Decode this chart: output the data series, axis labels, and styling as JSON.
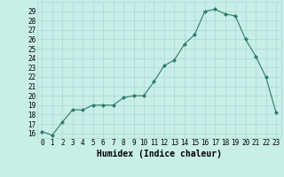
{
  "x": [
    0,
    1,
    2,
    3,
    4,
    5,
    6,
    7,
    8,
    9,
    10,
    11,
    12,
    13,
    14,
    15,
    16,
    17,
    18,
    19,
    20,
    21,
    22,
    23
  ],
  "y": [
    16.2,
    15.8,
    17.2,
    18.5,
    18.5,
    19.0,
    19.0,
    19.0,
    19.8,
    20.0,
    20.0,
    21.5,
    23.2,
    23.8,
    25.5,
    26.5,
    29.0,
    29.2,
    28.7,
    28.5,
    26.0,
    24.2,
    22.0,
    18.2
  ],
  "xlabel": "Humidex (Indice chaleur)",
  "ylabel": "",
  "xlim": [
    -0.5,
    23.5
  ],
  "ylim": [
    15.5,
    30
  ],
  "yticks": [
    16,
    17,
    18,
    19,
    20,
    21,
    22,
    23,
    24,
    25,
    26,
    27,
    28,
    29
  ],
  "xticks": [
    0,
    1,
    2,
    3,
    4,
    5,
    6,
    7,
    8,
    9,
    10,
    11,
    12,
    13,
    14,
    15,
    16,
    17,
    18,
    19,
    20,
    21,
    22,
    23
  ],
  "line_color": "#2d7a66",
  "bg_color": "#c8eee8",
  "grid_color": "#aad8d0",
  "xlabel_fontsize": 7,
  "tick_fontsize": 5.5
}
